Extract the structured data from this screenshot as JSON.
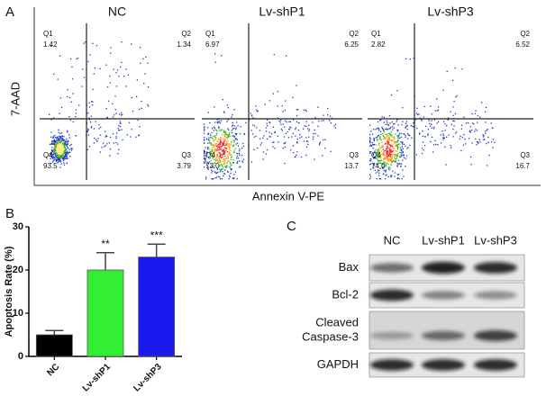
{
  "panel_labels": [
    "A",
    "B",
    "C"
  ],
  "flow": {
    "y_label": "7-AAD",
    "x_label": "Annexin V-PE",
    "plots": [
      {
        "title": "NC",
        "quadrants": [
          {
            "name": "Q1",
            "value": "1.42"
          },
          {
            "name": "Q2",
            "value": "1.34"
          },
          {
            "name": "Q3",
            "value": "3.79"
          },
          {
            "name": "Q4",
            "value": "93.5"
          }
        ]
      },
      {
        "title": "Lv-shP1",
        "quadrants": [
          {
            "name": "Q1",
            "value": "6.97"
          },
          {
            "name": "Q2",
            "value": "6.25"
          },
          {
            "name": "Q3",
            "value": "13.7"
          },
          {
            "name": "Q4",
            "value": "73.0"
          }
        ]
      },
      {
        "title": "Lv-shP3",
        "quadrants": [
          {
            "name": "Q1",
            "value": "2.82"
          },
          {
            "name": "Q2",
            "value": "6.52"
          },
          {
            "name": "Q3",
            "value": "16.7"
          },
          {
            "name": "Q4",
            "value": "74.0"
          }
        ]
      }
    ]
  },
  "chart_data": {
    "type": "bar",
    "y_label": "Apoptosis Rate (%)",
    "categories": [
      "NC",
      "Lv-shP1",
      "Lv-shP3"
    ],
    "values": [
      5,
      20,
      23
    ],
    "errors": [
      1,
      4,
      3
    ],
    "colors": [
      "#000000",
      "#33ee33",
      "#1a1aee"
    ],
    "significance": [
      null,
      "**",
      "***"
    ],
    "ylim": [
      0,
      30
    ],
    "yticks": [
      0,
      10,
      20,
      30
    ]
  },
  "western": {
    "columns": [
      "NC",
      "Lv-shP1",
      "Lv-shP3"
    ],
    "rows": [
      {
        "lines": [
          "Bax"
        ]
      },
      {
        "lines": [
          "Bcl-2"
        ]
      },
      {
        "lines": [
          "Cleaved",
          "Caspase-3"
        ]
      },
      {
        "lines": [
          "GAPDH"
        ]
      }
    ]
  }
}
